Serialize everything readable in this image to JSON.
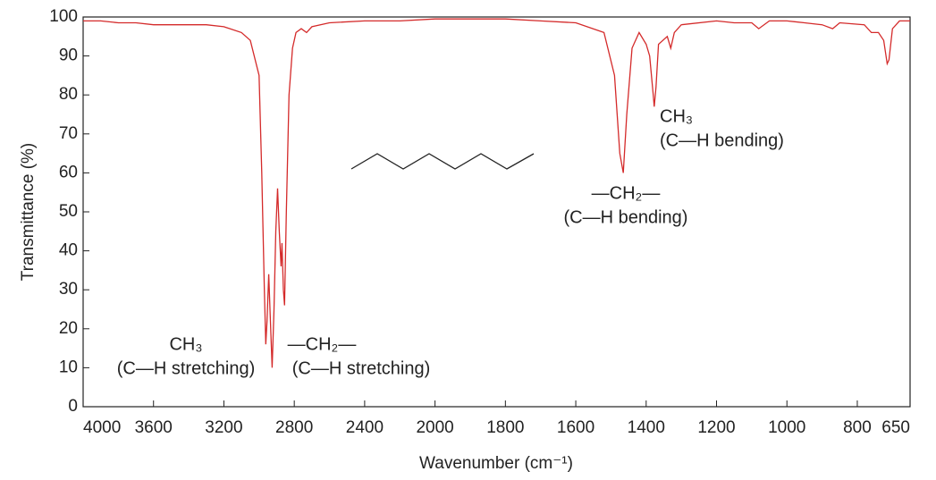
{
  "chart_data": {
    "type": "line",
    "xlabel": "Wavenumber (cm⁻¹)",
    "ylabel": "Transmittance (%)",
    "xlim": [
      4000,
      650
    ],
    "xbreak": 2000,
    "xticks": [
      4000,
      3600,
      3200,
      2800,
      2400,
      2000,
      1800,
      1600,
      1400,
      1200,
      1000,
      800,
      650
    ],
    "ylim": [
      0,
      100
    ],
    "yticks": [
      0,
      10,
      20,
      30,
      40,
      50,
      60,
      70,
      80,
      90,
      100
    ],
    "series": [
      {
        "color": "#d42a2a",
        "x": [
          4000,
          3900,
          3800,
          3700,
          3600,
          3500,
          3400,
          3300,
          3200,
          3100,
          3050,
          3000,
          2985,
          2970,
          2962,
          2955,
          2945,
          2938,
          2926,
          2915,
          2905,
          2895,
          2885,
          2875,
          2870,
          2862,
          2855,
          2845,
          2830,
          2810,
          2790,
          2760,
          2730,
          2700,
          2600,
          2400,
          2200,
          2000,
          1800,
          1700,
          1600,
          1520,
          1490,
          1475,
          1465,
          1455,
          1440,
          1420,
          1400,
          1390,
          1380,
          1377,
          1372,
          1365,
          1340,
          1330,
          1320,
          1300,
          1200,
          1150,
          1100,
          1080,
          1050,
          1000,
          950,
          900,
          870,
          850,
          780,
          760,
          740,
          725,
          715,
          710,
          700,
          680,
          650
        ],
        "values": [
          99,
          99,
          98.5,
          98.5,
          98,
          98,
          98,
          98,
          97.5,
          96,
          94,
          85,
          60,
          30,
          16,
          22,
          34,
          25,
          10,
          25,
          45,
          56,
          45,
          36,
          42,
          30,
          26,
          50,
          80,
          92,
          96,
          97,
          96,
          97.5,
          98.5,
          99,
          99,
          99.5,
          99.5,
          99,
          98.5,
          96,
          85,
          65,
          60,
          75,
          92,
          96,
          93,
          90,
          80,
          77,
          82,
          93,
          95,
          92,
          96,
          98,
          99,
          98.5,
          98.5,
          97,
          99,
          99,
          98.5,
          98,
          97,
          98.5,
          98,
          96,
          96,
          94,
          88,
          89,
          97,
          99,
          99
        ]
      }
    ],
    "annotations": [
      "CH₃",
      "(C—H stretching)",
      "—CH₂—",
      "(C—H stretching)",
      "—CH₂—",
      "(C—H bending)",
      "CH₃",
      "(C—H bending)"
    ]
  }
}
